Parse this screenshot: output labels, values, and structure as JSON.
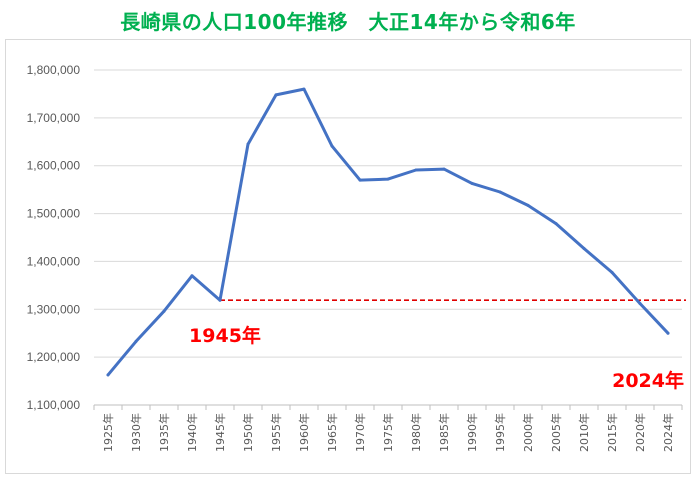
{
  "chart_data": {
    "type": "line",
    "title": "長崎県の人口100年推移　大正14年から令和6年",
    "xlabel": "",
    "ylabel": "",
    "categories": [
      "1925年",
      "1930年",
      "1935年",
      "1940年",
      "1945年",
      "1950年",
      "1955年",
      "1960年",
      "1965年",
      "1970年",
      "1975年",
      "1980年",
      "1985年",
      "1990年",
      "1995年",
      "2000年",
      "2005年",
      "2010年",
      "2015年",
      "2020年",
      "2024年"
    ],
    "series": [
      {
        "values": [
          1163000,
          1233000,
          1296000,
          1370000,
          1319000,
          1645000,
          1748000,
          1760000,
          1641000,
          1570000,
          1572000,
          1591000,
          1593000,
          1563000,
          1545000,
          1517000,
          1479000,
          1427000,
          1377000,
          1312000,
          1250000
        ]
      }
    ],
    "ylim": [
      1100000,
      1800000
    ],
    "yticks": [
      1100000,
      1200000,
      1300000,
      1400000,
      1500000,
      1600000,
      1700000,
      1800000
    ],
    "ytick_labels": [
      "1,100,000",
      "1,200,000",
      "1,300,000",
      "1,400,000",
      "1,500,000",
      "1,600,000",
      "1,700,000",
      "1,800,000"
    ],
    "grid": true,
    "reference_line": {
      "value": 1319000,
      "from_category": "1945年",
      "style": "dashed"
    },
    "annotations": [
      {
        "text": "1945年",
        "category": "1945年"
      },
      {
        "text": "2024年",
        "category": "2024年"
      }
    ],
    "colors": {
      "title": "#00b050",
      "line": "#4472c4",
      "reference": "#e00000",
      "annotation": "#ff0000",
      "grid": "#d9d9d9",
      "axis": "#bfbfbf"
    }
  }
}
